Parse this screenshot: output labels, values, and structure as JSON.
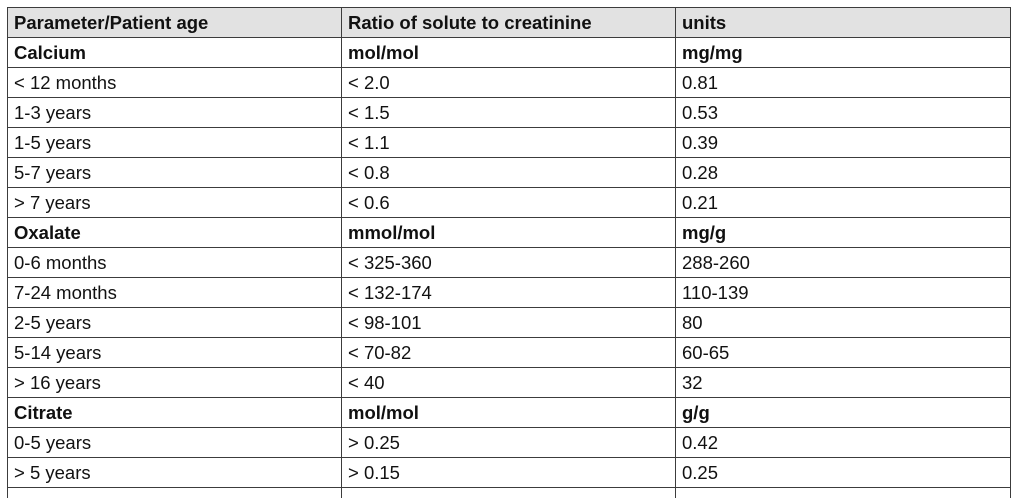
{
  "header": [
    "Parameter/Patient age",
    "Ratio of solute to creatinine",
    "units"
  ],
  "rows": [
    {
      "type": "section",
      "cells": [
        "Calcium",
        "mol/mol",
        "mg/mg"
      ]
    },
    {
      "type": "data",
      "cells": [
        "< 12 months",
        "< 2.0",
        "0.81"
      ]
    },
    {
      "type": "data",
      "cells": [
        "1-3 years",
        "< 1.5",
        "0.53"
      ]
    },
    {
      "type": "data",
      "cells": [
        "1-5 years",
        "< 1.1",
        "0.39"
      ]
    },
    {
      "type": "data",
      "cells": [
        "5-7 years",
        "< 0.8",
        "0.28"
      ]
    },
    {
      "type": "data",
      "cells": [
        "> 7 years",
        "< 0.6",
        "0.21"
      ]
    },
    {
      "type": "section",
      "cells": [
        "Oxalate",
        "mmol/mol",
        "mg/g"
      ]
    },
    {
      "type": "data",
      "cells": [
        "0-6 months",
        "< 325-360",
        "288-260"
      ]
    },
    {
      "type": "data",
      "cells": [
        "7-24 months",
        "< 132-174",
        "110-139"
      ]
    },
    {
      "type": "data",
      "cells": [
        "2-5 years",
        "< 98-101",
        "80"
      ]
    },
    {
      "type": "data",
      "cells": [
        "5-14 years",
        "< 70-82",
        "60-65"
      ]
    },
    {
      "type": "data",
      "cells": [
        "> 16 years",
        "< 40",
        "32"
      ]
    },
    {
      "type": "section",
      "cells": [
        "Citrate",
        "mol/mol",
        "g/g"
      ]
    },
    {
      "type": "data",
      "cells": [
        "0-5 years",
        "> 0.25",
        "0.42"
      ]
    },
    {
      "type": "data",
      "cells": [
        "> 5 years",
        "> 0.15",
        "0.25"
      ]
    }
  ]
}
